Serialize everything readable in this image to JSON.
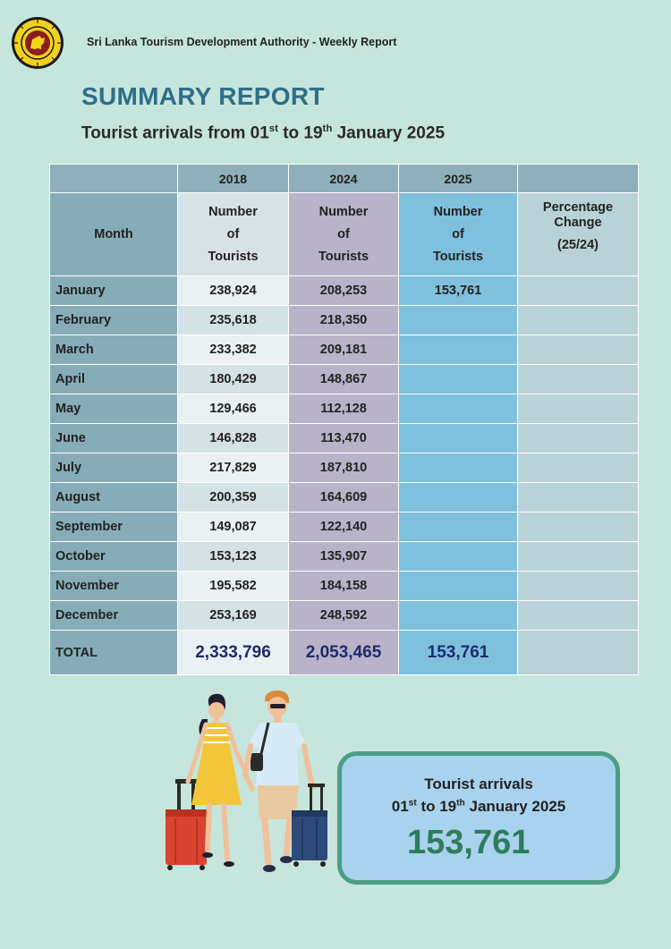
{
  "header": {
    "organization": "Sri Lanka Tourism Development Authority - Weekly Report",
    "title": "SUMMARY REPORT",
    "subtitle_pre": "Tourist arrivals from 01",
    "subtitle_sup1": "st",
    "subtitle_mid": " to 19",
    "subtitle_sup2": "th",
    "subtitle_post": " January 2025"
  },
  "table": {
    "years": [
      "2018",
      "2024",
      "2025"
    ],
    "month_header": "Month",
    "col_header_lines": [
      "Number",
      "of",
      "Tourists"
    ],
    "pct_header_lines": [
      "Percentage",
      "Change",
      "(25/24)"
    ],
    "rows": [
      {
        "month": "January",
        "v2018": "238,924",
        "v2024": "208,253",
        "v2025": "153,761",
        "pct": ""
      },
      {
        "month": "February",
        "v2018": "235,618",
        "v2024": "218,350",
        "v2025": "",
        "pct": ""
      },
      {
        "month": "March",
        "v2018": "233,382",
        "v2024": "209,181",
        "v2025": "",
        "pct": ""
      },
      {
        "month": "April",
        "v2018": "180,429",
        "v2024": "148,867",
        "v2025": "",
        "pct": ""
      },
      {
        "month": "May",
        "v2018": "129,466",
        "v2024": "112,128",
        "v2025": "",
        "pct": ""
      },
      {
        "month": "June",
        "v2018": "146,828",
        "v2024": "113,470",
        "v2025": "",
        "pct": ""
      },
      {
        "month": "July",
        "v2018": "217,829",
        "v2024": "187,810",
        "v2025": "",
        "pct": ""
      },
      {
        "month": "August",
        "v2018": "200,359",
        "v2024": "164,609",
        "v2025": "",
        "pct": ""
      },
      {
        "month": "September",
        "v2018": "149,087",
        "v2024": "122,140",
        "v2025": "",
        "pct": ""
      },
      {
        "month": "October",
        "v2018": "153,123",
        "v2024": "135,907",
        "v2025": "",
        "pct": ""
      },
      {
        "month": "November",
        "v2018": "195,582",
        "v2024": "184,158",
        "v2025": "",
        "pct": ""
      },
      {
        "month": "December",
        "v2018": "253,169",
        "v2024": "248,592",
        "v2025": "",
        "pct": ""
      }
    ],
    "total": {
      "label": "TOTAL",
      "v2018": "2,333,796",
      "v2024": "2,053,465",
      "v2025": "153,761",
      "pct": ""
    }
  },
  "summary_box": {
    "title": "Tourist arrivals",
    "sub_pre": "01",
    "sub_sup1": "st",
    "sub_mid": " to 19",
    "sub_sup2": "th",
    "sub_post": " January 2025",
    "value": "153,761"
  },
  "colors": {
    "background": "#c6e5dc",
    "title": "#2e6e8a",
    "col_2018": "#eaf1f2",
    "col_2024": "#b8b3c9",
    "col_2025": "#7fc0dd",
    "box_border": "#4a9e84",
    "box_value": "#2e7d5c"
  },
  "icons": {
    "logo": "sri-lanka-lion-emblem",
    "illustration": "traveling-couple-with-suitcases"
  }
}
